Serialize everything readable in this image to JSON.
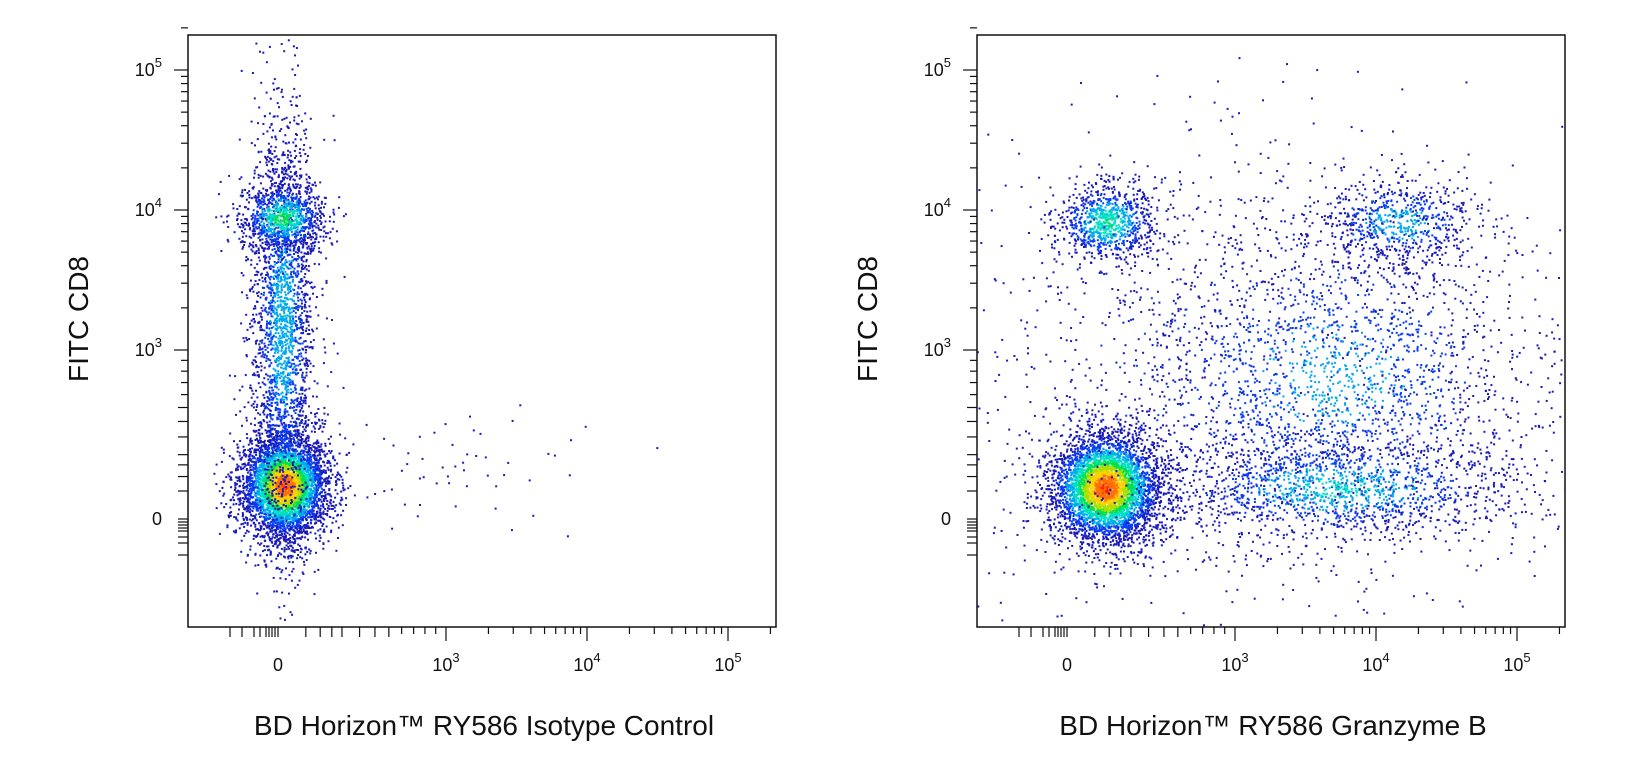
{
  "chart_data": [
    {
      "type": "scatter",
      "subtype": "flow-cytometry-density-plot",
      "title": "",
      "xlabel": "BD Horizon™ RY586 Isotype Control",
      "ylabel": "FITC CD8",
      "x_scale": "biexponential",
      "y_scale": "biexponential",
      "xlim": [
        -1000,
        200000
      ],
      "ylim": [
        -800,
        250000
      ],
      "x_ticks": [
        {
          "base": "0",
          "exp": ""
        },
        {
          "base": "10",
          "exp": "3"
        },
        {
          "base": "10",
          "exp": "4"
        },
        {
          "base": "10",
          "exp": "5"
        }
      ],
      "y_ticks": [
        {
          "base": "0",
          "exp": ""
        },
        {
          "base": "10",
          "exp": "3"
        },
        {
          "base": "10",
          "exp": "4"
        },
        {
          "base": "10",
          "exp": "5"
        }
      ],
      "populations": [
        {
          "name": "CD8- / isotype-",
          "x_center": 50,
          "y_center": 50,
          "relative_density": "highest"
        },
        {
          "name": "CD8+ / isotype-",
          "x_center": 50,
          "y_center": 10000,
          "relative_density": "high"
        },
        {
          "name": "CD8- / isotype low",
          "x_center": 3000,
          "y_center": 60,
          "relative_density": "very low"
        }
      ],
      "color_scale": [
        "#1010c8",
        "#00bfff",
        "#00e060",
        "#ffd000",
        "#ff2000"
      ]
    },
    {
      "type": "scatter",
      "subtype": "flow-cytometry-density-plot",
      "title": "",
      "xlabel": "BD Horizon™ RY586 Granzyme B",
      "ylabel": "FITC CD8",
      "x_scale": "biexponential",
      "y_scale": "biexponential",
      "xlim": [
        -1000,
        200000
      ],
      "ylim": [
        -800,
        250000
      ],
      "x_ticks": [
        {
          "base": "0",
          "exp": ""
        },
        {
          "base": "10",
          "exp": "3"
        },
        {
          "base": "10",
          "exp": "4"
        },
        {
          "base": "10",
          "exp": "5"
        }
      ],
      "y_ticks": [
        {
          "base": "0",
          "exp": ""
        },
        {
          "base": "10",
          "exp": "3"
        },
        {
          "base": "10",
          "exp": "4"
        },
        {
          "base": "10",
          "exp": "5"
        }
      ],
      "populations": [
        {
          "name": "CD8- / Granzyme B-",
          "x_center": 150,
          "y_center": 50,
          "relative_density": "highest"
        },
        {
          "name": "CD8+ / Granzyme B-",
          "x_center": 150,
          "y_center": 10000,
          "relative_density": "high"
        },
        {
          "name": "CD8+ / Granzyme B+",
          "x_center": 20000,
          "y_center": 10000,
          "relative_density": "medium"
        },
        {
          "name": "CD8 mid / Granzyme B+",
          "x_center": 5000,
          "y_center": 1200,
          "relative_density": "medium"
        },
        {
          "name": "CD8- / Granzyme B+",
          "x_center": 6000,
          "y_center": 60,
          "relative_density": "medium"
        }
      ],
      "color_scale": [
        "#1010c8",
        "#00bfff",
        "#00e060",
        "#ffd000",
        "#ff2000"
      ]
    }
  ]
}
